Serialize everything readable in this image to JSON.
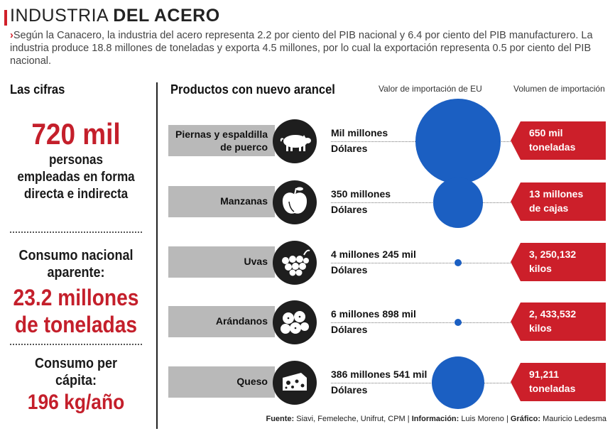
{
  "header": {
    "title_light": "INDUSTRIA ",
    "title_bold": "DEL ACERO",
    "intro_arrow": "›",
    "intro": "Según la Canacero, la industria del acero representa 2.2 por ciento del PIB nacional y 6.4 por ciento del PIB manufacturero. La industria produce 18.8 millones de toneladas y exporta 4.5 millones, por lo cual la exportación representa 0.5 por ciento del PIB nacional."
  },
  "cifras": {
    "heading": "Las cifras",
    "empleo_valor": "720 mil",
    "empleo_texto": "personas empleadas en forma directa e indirecta",
    "consumo_label": "Consumo nacional aparente:",
    "consumo_valor": "23.2 millones de toneladas",
    "percapita_label": "Consumo per cápita:",
    "percapita_valor": "196 kg/año"
  },
  "productos": {
    "heading": "Productos con nuevo arancel",
    "col_valor": "Valor de importación de EU",
    "col_volumen": "Volumen de importación",
    "bubble_color": "#1b5fc2",
    "tag_color": "#cc1f2a",
    "rows": [
      {
        "name_1": "Piernas y espaldilla",
        "name_2": "de puerco",
        "icon": "pig-icon",
        "value": "Mil millones",
        "unit": "Dólares",
        "value_millones_usd": 1000,
        "vol_1": "650 mil",
        "vol_2": "toneladas"
      },
      {
        "name_1": "Manzanas",
        "name_2": "",
        "icon": "apple-icon",
        "value": "350 millones",
        "unit": "Dólares",
        "value_millones_usd": 350,
        "vol_1": "13 millones",
        "vol_2": "de cajas"
      },
      {
        "name_1": "Uvas",
        "name_2": "",
        "icon": "grapes-icon",
        "value": "4 millones 245 mil",
        "unit": "Dólares",
        "value_millones_usd": 4.245,
        "vol_1": "3, 250,132",
        "vol_2": "kilos"
      },
      {
        "name_1": "Arándanos",
        "name_2": "",
        "icon": "blueberries-icon",
        "value": "6 millones 898 mil",
        "unit": "Dólares",
        "value_millones_usd": 6.898,
        "vol_1": "2, 433,532",
        "vol_2": "kilos"
      },
      {
        "name_1": "Queso",
        "name_2": "",
        "icon": "cheese-icon",
        "value": "386 millones 541 mil",
        "unit": "Dólares",
        "value_millones_usd": 386.541,
        "vol_1": "91,211",
        "vol_2": "toneladas"
      }
    ]
  },
  "footer": {
    "fuente_label": "Fuente:",
    "fuente": " Siavi, Femeleche, Unifrut, CPM | ",
    "info_label": "Información:",
    "info": " Luis Moreno | ",
    "grafico_label": "Gráfico:",
    "grafico": " Mauricio Ledesma"
  }
}
